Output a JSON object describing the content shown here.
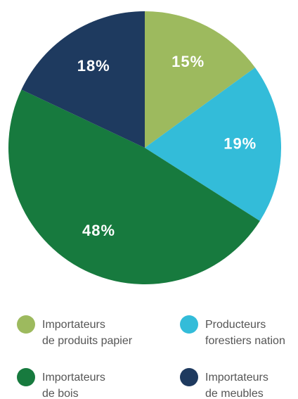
{
  "chart_data": {
    "type": "pie",
    "categories": [
      "Importateurs\nde produits papier",
      "Producteurs\nforestiers nation",
      "Importateurs\nde bois",
      "Importateurs\nde meubles"
    ],
    "values": [
      15,
      19,
      48,
      18
    ],
    "value_labels": [
      "15%",
      "19%",
      "48%",
      "18%"
    ],
    "colors": [
      "#9dba5e",
      "#33bcd9",
      "#177a3e",
      "#1e3a5f"
    ],
    "label_colors": [
      "#ffffff",
      "#ffffff",
      "#ffffff",
      "#ffffff"
    ]
  }
}
